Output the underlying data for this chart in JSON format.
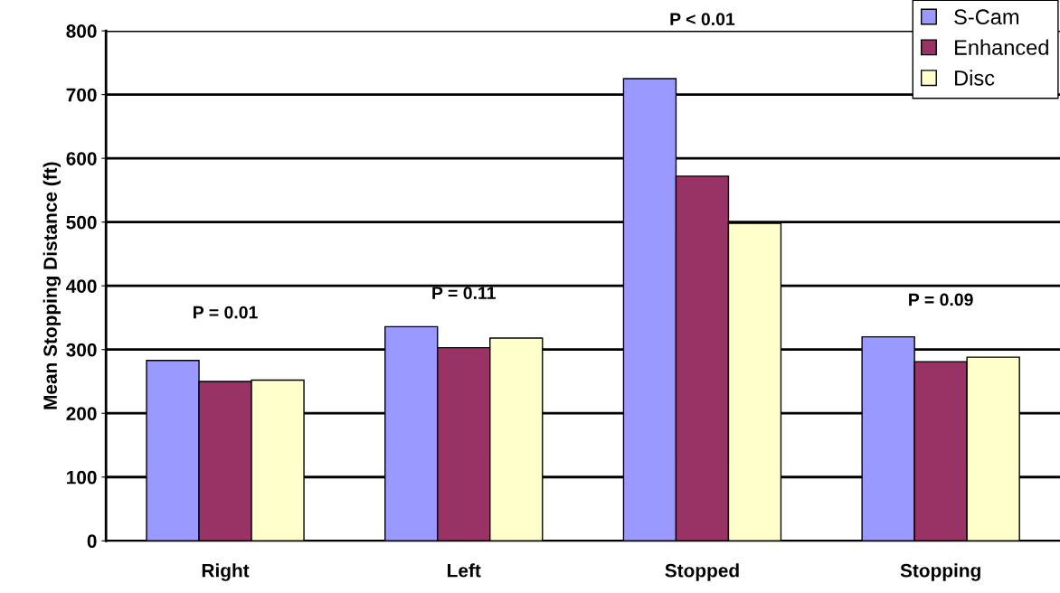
{
  "chart_data": {
    "type": "bar",
    "ylabel": "Mean Stopping Distance (ft)",
    "categories": [
      "Right",
      "Left",
      "Stopped",
      "Stopping"
    ],
    "series": [
      {
        "name": "S-Cam",
        "color": "#9999ff",
        "values": [
          283,
          336,
          725,
          320
        ]
      },
      {
        "name": "Enhanced",
        "color": "#993366",
        "values": [
          250,
          303,
          572,
          281
        ]
      },
      {
        "name": "Disc",
        "color": "#ffffcc",
        "values": [
          252,
          318,
          498,
          288
        ]
      }
    ],
    "ylim": [
      0,
      800
    ],
    "yticks": [
      0,
      100,
      200,
      300,
      400,
      500,
      600,
      700,
      800
    ],
    "grid": "y",
    "legend": "top right",
    "annotations": [
      "P = 0.01",
      "P = 0.11",
      "P < 0.01",
      "P = 0.09"
    ]
  }
}
